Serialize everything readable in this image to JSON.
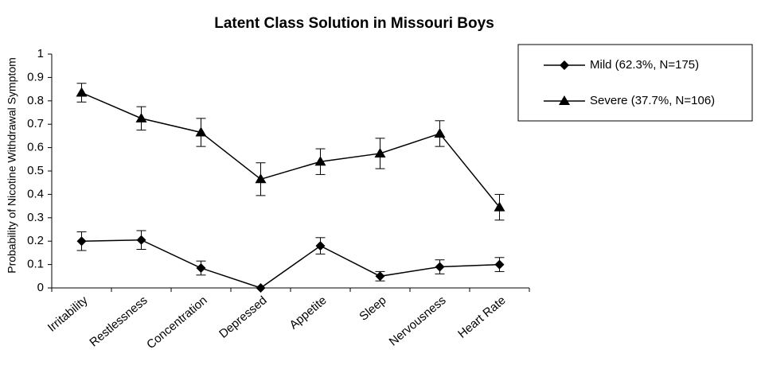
{
  "chart_data": {
    "type": "line",
    "title": "Latent Class Solution in Missouri Boys",
    "y_label": "Probability of Nicotine Withdrawal Symptom",
    "categories": [
      "Irritability",
      "Restlessness",
      "Concentration",
      "Depressed",
      "Appetite",
      "Sleep",
      "Nervousness",
      "Heart Rate"
    ],
    "series": [
      {
        "name": "Mild (62.3%, N=175)",
        "color": "#000000",
        "marker": "diamond",
        "values": [
          0.2,
          0.205,
          0.085,
          0.0,
          0.18,
          0.05,
          0.09,
          0.1
        ],
        "errors": [
          0.04,
          0.04,
          0.03,
          0.0,
          0.035,
          0.02,
          0.03,
          0.03
        ]
      },
      {
        "name": "Severe (37.7%, N=106)",
        "color": "#000000",
        "marker": "triangle",
        "values": [
          0.835,
          0.725,
          0.665,
          0.465,
          0.54,
          0.575,
          0.66,
          0.345
        ],
        "errors": [
          0.04,
          0.05,
          0.06,
          0.07,
          0.055,
          0.065,
          0.055,
          0.055
        ]
      }
    ],
    "ylim": [
      0,
      1
    ],
    "yticks": [
      0,
      0.1,
      0.2,
      0.3,
      0.4,
      0.5,
      0.6,
      0.7,
      0.8,
      0.9,
      1
    ],
    "grid": false,
    "legend": "upper right"
  }
}
